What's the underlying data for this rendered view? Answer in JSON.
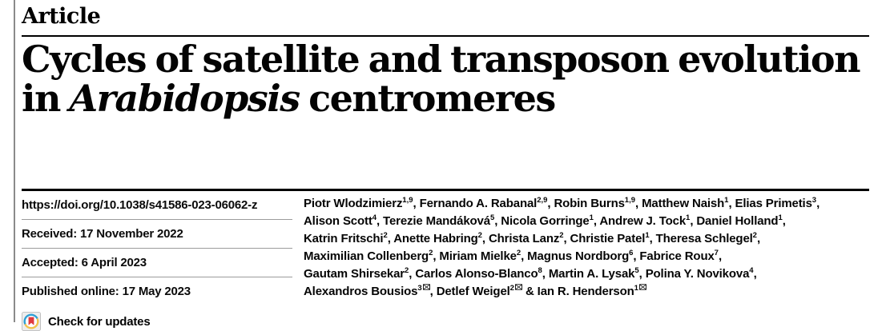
{
  "kicker": "Article",
  "title": {
    "line1": "Cycles of satellite and transposon evolution",
    "line2_pre": "in ",
    "line2_italic": "Arabidopsis",
    "line2_post": " centromeres"
  },
  "meta": {
    "doi": "https://doi.org/10.1038/s41586-023-06062-z",
    "received": "Received: 17 November 2022",
    "accepted": "Accepted: 6 April 2023",
    "published": "Published online: 17 May 2023",
    "check_updates": "Check for updates"
  },
  "authors": {
    "ampersand": "&",
    "lines": [
      [
        {
          "name": "Piotr Wlodzimierz",
          "sup": "1,9"
        },
        {
          "name": "Fernando A. Rabanal",
          "sup": "2,9"
        },
        {
          "name": "Robin Burns",
          "sup": "1,9"
        },
        {
          "name": "Matthew Naish",
          "sup": "1"
        },
        {
          "name": "Elias Primetis",
          "sup": "3"
        }
      ],
      [
        {
          "name": "Alison Scott",
          "sup": "4"
        },
        {
          "name": "Terezie Mandáková",
          "sup": "5"
        },
        {
          "name": "Nicola Gorringe",
          "sup": "1"
        },
        {
          "name": "Andrew J. Tock",
          "sup": "1"
        },
        {
          "name": "Daniel Holland",
          "sup": "1"
        }
      ],
      [
        {
          "name": "Katrin Fritschi",
          "sup": "2"
        },
        {
          "name": "Anette Habring",
          "sup": "2"
        },
        {
          "name": "Christa Lanz",
          "sup": "2"
        },
        {
          "name": "Christie Patel",
          "sup": "1"
        },
        {
          "name": "Theresa Schlegel",
          "sup": "2"
        }
      ],
      [
        {
          "name": "Maximilian Collenberg",
          "sup": "2"
        },
        {
          "name": "Miriam Mielke",
          "sup": "2"
        },
        {
          "name": "Magnus Nordborg",
          "sup": "6"
        },
        {
          "name": "Fabrice Roux",
          "sup": "7"
        }
      ],
      [
        {
          "name": "Gautam Shirsekar",
          "sup": "2"
        },
        {
          "name": "Carlos Alonso-Blanco",
          "sup": "8"
        },
        {
          "name": "Martin A. Lysak",
          "sup": "5"
        },
        {
          "name": "Polina Y. Novikova",
          "sup": "4"
        }
      ],
      [
        {
          "name": "Alexandros Bousios",
          "sup": "3",
          "env": true
        },
        {
          "name": "Detlef Weigel",
          "sup": "2",
          "env": true
        },
        {
          "name": "Ian R. Henderson",
          "sup": "1",
          "env": true
        }
      ]
    ]
  },
  "colors": {
    "rule_black": "#000000",
    "rule_gray": "#9b9b9b",
    "side_bar_gray": "#8a8a8a",
    "crossmark_red": "#e0393e",
    "crossmark_blue": "#2e9fd4",
    "crossmark_yellow": "#f2c24b"
  }
}
